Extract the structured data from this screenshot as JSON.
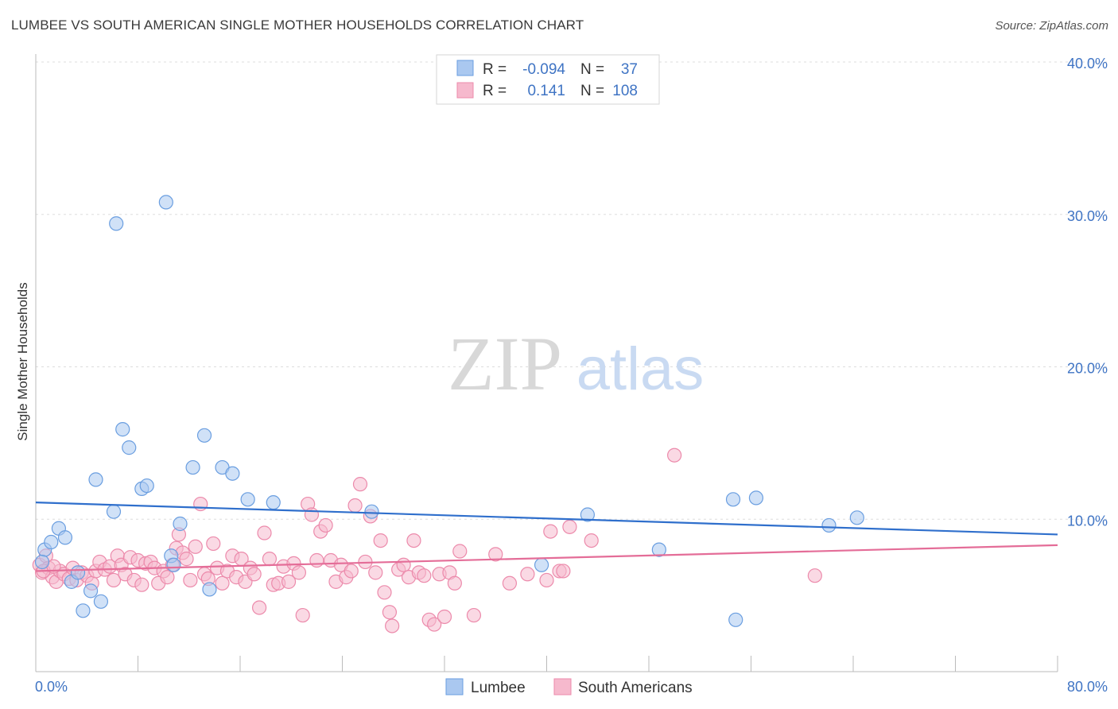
{
  "title": "LUMBEE VS SOUTH AMERICAN SINGLE MOTHER HOUSEHOLDS CORRELATION CHART",
  "source": "Source: ZipAtlas.com",
  "watermark": {
    "zip": "ZIP",
    "atlas": "atlas"
  },
  "colors": {
    "lumbee_fill": "#aac8f0",
    "lumbee_stroke": "#6a9ee0",
    "lumbee_line": "#2f6fcc",
    "sa_fill": "#f6b9cd",
    "sa_stroke": "#ec8aab",
    "sa_line": "#e46d98",
    "axis_text": "#3f74c4",
    "grid": "#dddddd"
  },
  "legend": {
    "rows": [
      {
        "r_label": "R =",
        "r_value": "-0.094",
        "n_label": "N =",
        "n_value": "37"
      },
      {
        "r_label": "R =",
        "r_value": "0.141",
        "n_label": "N =",
        "n_value": "108"
      }
    ]
  },
  "bottom_legend": [
    "Lumbee",
    "South Americans"
  ],
  "chart_data": {
    "type": "scatter",
    "title": "LUMBEE VS SOUTH AMERICAN SINGLE MOTHER HOUSEHOLDS CORRELATION CHART",
    "xlabel": "",
    "ylabel": "Single Mother Households",
    "xlim": [
      0,
      80
    ],
    "ylim": [
      0,
      40
    ],
    "x_tick_labels": [
      "0.0%",
      "80.0%"
    ],
    "y_ticks": [
      10,
      20,
      30,
      40
    ],
    "y_tick_labels": [
      "10.0%",
      "20.0%",
      "30.0%",
      "40.0%"
    ],
    "grid": true,
    "legend_position": "top-center",
    "series": [
      {
        "name": "Lumbee",
        "r": -0.094,
        "n": 37,
        "trend": {
          "x0": 0,
          "y0": 11.1,
          "x1": 80,
          "y1": 9.0
        },
        "points": [
          [
            0.7,
            8.0
          ],
          [
            1.2,
            8.5
          ],
          [
            1.8,
            9.4
          ],
          [
            2.3,
            8.8
          ],
          [
            2.8,
            5.9
          ],
          [
            3.3,
            6.5
          ],
          [
            3.7,
            4.0
          ],
          [
            4.3,
            5.3
          ],
          [
            4.7,
            12.6
          ],
          [
            5.1,
            4.6
          ],
          [
            6.1,
            10.5
          ],
          [
            6.3,
            29.4
          ],
          [
            6.8,
            15.9
          ],
          [
            7.3,
            14.7
          ],
          [
            8.3,
            12.0
          ],
          [
            8.7,
            12.2
          ],
          [
            10.2,
            30.8
          ],
          [
            10.6,
            7.6
          ],
          [
            10.8,
            7.0
          ],
          [
            11.3,
            9.7
          ],
          [
            12.3,
            13.4
          ],
          [
            13.2,
            15.5
          ],
          [
            13.6,
            5.4
          ],
          [
            14.6,
            13.4
          ],
          [
            15.4,
            13.0
          ],
          [
            16.6,
            11.3
          ],
          [
            18.6,
            11.1
          ],
          [
            26.3,
            10.5
          ],
          [
            39.6,
            7.0
          ],
          [
            43.2,
            10.3
          ],
          [
            48.8,
            8.0
          ],
          [
            54.6,
            11.3
          ],
          [
            54.8,
            3.4
          ],
          [
            56.4,
            11.4
          ],
          [
            62.1,
            9.6
          ],
          [
            64.3,
            10.1
          ],
          [
            0.5,
            7.2
          ]
        ]
      },
      {
        "name": "South Americans",
        "r": 0.141,
        "n": 108,
        "trend": {
          "x0": 0,
          "y0": 6.6,
          "x1": 80,
          "y1": 8.3
        },
        "points": [
          [
            0.3,
            7.0
          ],
          [
            0.5,
            6.5
          ],
          [
            0.8,
            7.6
          ],
          [
            1.0,
            6.8
          ],
          [
            1.3,
            6.2
          ],
          [
            1.6,
            5.9
          ],
          [
            1.9,
            6.6
          ],
          [
            2.2,
            6.4
          ],
          [
            2.6,
            6.1
          ],
          [
            2.9,
            6.8
          ],
          [
            3.2,
            6.0
          ],
          [
            3.6,
            6.5
          ],
          [
            4.0,
            6.3
          ],
          [
            4.4,
            5.8
          ],
          [
            4.7,
            6.6
          ],
          [
            5.0,
            7.2
          ],
          [
            5.4,
            6.7
          ],
          [
            5.8,
            6.9
          ],
          [
            6.1,
            6.0
          ],
          [
            6.4,
            7.6
          ],
          [
            6.7,
            7.0
          ],
          [
            7.0,
            6.4
          ],
          [
            7.4,
            7.5
          ],
          [
            7.7,
            6.0
          ],
          [
            8.0,
            7.3
          ],
          [
            8.3,
            5.7
          ],
          [
            8.6,
            7.1
          ],
          [
            9.0,
            7.2
          ],
          [
            9.3,
            6.8
          ],
          [
            9.6,
            5.8
          ],
          [
            10.0,
            6.6
          ],
          [
            10.3,
            6.2
          ],
          [
            10.7,
            7.0
          ],
          [
            11.0,
            8.1
          ],
          [
            11.2,
            9.0
          ],
          [
            11.5,
            7.8
          ],
          [
            11.8,
            7.4
          ],
          [
            12.1,
            6.0
          ],
          [
            12.5,
            8.2
          ],
          [
            12.9,
            11.0
          ],
          [
            13.2,
            6.4
          ],
          [
            13.5,
            6.1
          ],
          [
            13.9,
            8.4
          ],
          [
            14.2,
            6.8
          ],
          [
            14.6,
            5.8
          ],
          [
            15.0,
            6.6
          ],
          [
            15.4,
            7.6
          ],
          [
            15.7,
            6.2
          ],
          [
            16.1,
            7.4
          ],
          [
            16.4,
            5.9
          ],
          [
            16.8,
            6.8
          ],
          [
            17.1,
            6.4
          ],
          [
            17.5,
            4.2
          ],
          [
            17.9,
            9.1
          ],
          [
            18.3,
            7.4
          ],
          [
            18.6,
            5.7
          ],
          [
            19.0,
            5.8
          ],
          [
            19.4,
            6.9
          ],
          [
            19.8,
            5.9
          ],
          [
            20.2,
            7.1
          ],
          [
            20.6,
            6.5
          ],
          [
            20.9,
            3.7
          ],
          [
            21.3,
            11.0
          ],
          [
            21.6,
            10.3
          ],
          [
            22.0,
            7.3
          ],
          [
            22.3,
            9.2
          ],
          [
            22.7,
            9.6
          ],
          [
            23.1,
            7.3
          ],
          [
            23.5,
            5.9
          ],
          [
            23.9,
            7.0
          ],
          [
            24.3,
            6.2
          ],
          [
            24.7,
            6.6
          ],
          [
            25.0,
            10.9
          ],
          [
            25.4,
            12.3
          ],
          [
            25.8,
            7.2
          ],
          [
            26.2,
            10.2
          ],
          [
            26.6,
            6.5
          ],
          [
            27.0,
            8.6
          ],
          [
            27.3,
            5.2
          ],
          [
            27.7,
            3.9
          ],
          [
            27.9,
            3.0
          ],
          [
            28.4,
            6.7
          ],
          [
            28.8,
            7.0
          ],
          [
            29.2,
            6.2
          ],
          [
            29.6,
            8.6
          ],
          [
            30.0,
            6.5
          ],
          [
            30.4,
            6.3
          ],
          [
            30.8,
            3.4
          ],
          [
            31.2,
            3.1
          ],
          [
            31.6,
            6.4
          ],
          [
            32.0,
            3.6
          ],
          [
            32.4,
            6.5
          ],
          [
            32.8,
            5.8
          ],
          [
            33.2,
            7.9
          ],
          [
            34.3,
            3.7
          ],
          [
            36.0,
            7.7
          ],
          [
            37.1,
            5.8
          ],
          [
            38.5,
            6.4
          ],
          [
            40.0,
            6.0
          ],
          [
            40.3,
            9.2
          ],
          [
            41.0,
            6.6
          ],
          [
            41.3,
            6.6
          ],
          [
            41.8,
            9.5
          ],
          [
            43.5,
            8.6
          ],
          [
            50.0,
            14.2
          ],
          [
            61.0,
            6.3
          ],
          [
            0.6,
            6.6
          ],
          [
            1.4,
            6.9
          ]
        ]
      }
    ]
  }
}
